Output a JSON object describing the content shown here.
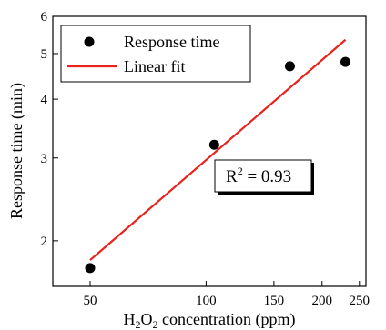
{
  "chart_data": {
    "type": "scatter",
    "xscale": "log",
    "yscale": "log",
    "xlim": [
      40,
      260
    ],
    "ylim": [
      1.6,
      6
    ],
    "xticks": [
      {
        "value": 50,
        "label": "50"
      },
      {
        "value": 100,
        "label": "100"
      },
      {
        "value": 150,
        "label": "150"
      },
      {
        "value": 200,
        "label": "200"
      },
      {
        "value": 250,
        "label": "250"
      }
    ],
    "yticks": [
      {
        "value": 2,
        "label": "2"
      },
      {
        "value": 3,
        "label": "3"
      },
      {
        "value": 4,
        "label": "4"
      },
      {
        "value": 5,
        "label": "5"
      },
      {
        "value": 6,
        "label": "6"
      }
    ],
    "xlabel": {
      "main": "H",
      "sub1": "2",
      "mid": "O",
      "sub2": "2",
      "rest": " concentration (ppm)"
    },
    "ylabel": "Response time (min)",
    "series": [
      {
        "name": "Response time",
        "kind": "scatter",
        "color": "#000000",
        "points": [
          {
            "x": 50,
            "y": 1.75
          },
          {
            "x": 105,
            "y": 3.2
          },
          {
            "x": 165,
            "y": 4.7
          },
          {
            "x": 230,
            "y": 4.8
          }
        ]
      },
      {
        "name": "Linear fit",
        "kind": "line",
        "color": "#e8221c",
        "points": [
          {
            "x": 50,
            "y": 1.82
          },
          {
            "x": 230,
            "y": 5.35
          }
        ]
      }
    ],
    "legend": {
      "position": "top-left"
    },
    "annotation": {
      "base": "R",
      "sup": "2",
      "rest": " = 0.93"
    },
    "grid": false
  }
}
